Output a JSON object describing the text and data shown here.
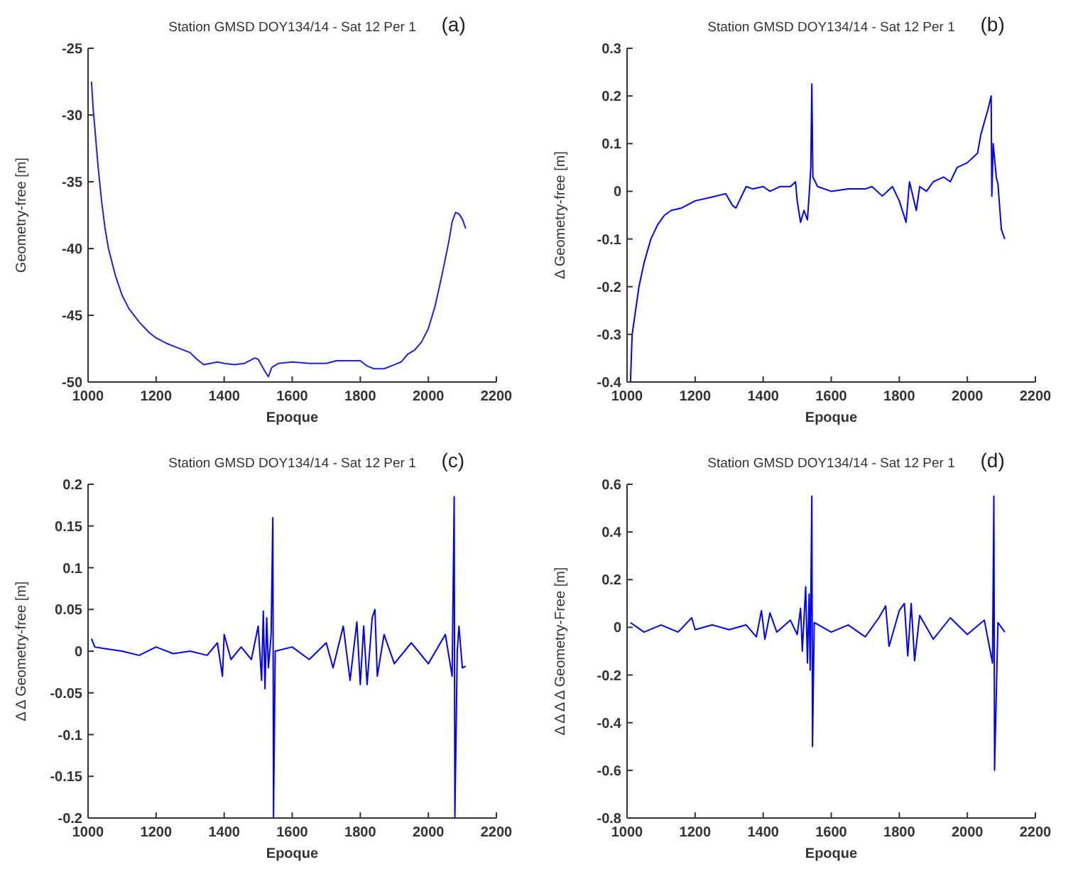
{
  "chart_data": [
    {
      "type": "line",
      "title": "Station GMSD DOY134/14 - Sat  12 Per 1",
      "annotations": [
        "(a)"
      ],
      "xlabel": "Epoque",
      "ylabel": "Geometry-free [m]",
      "xlim": [
        1000,
        2200
      ],
      "xticks": [
        1000,
        1200,
        1400,
        1600,
        1800,
        2000,
        2200
      ],
      "ylim": [
        -50,
        -25
      ],
      "yticks": [
        -50,
        -45,
        -40,
        -35,
        -30,
        -25
      ],
      "grid": false,
      "x": [
        1010,
        1015,
        1020,
        1030,
        1040,
        1050,
        1060,
        1080,
        1100,
        1120,
        1150,
        1180,
        1200,
        1230,
        1260,
        1300,
        1320,
        1340,
        1360,
        1380,
        1400,
        1430,
        1460,
        1490,
        1500,
        1520,
        1530,
        1540,
        1560,
        1600,
        1650,
        1700,
        1730,
        1760,
        1800,
        1820,
        1840,
        1870,
        1900,
        1920,
        1940,
        1960,
        1980,
        2000,
        2020,
        2040,
        2060,
        2070,
        2080,
        2090,
        2100,
        2110
      ],
      "series": [
        {
          "color": "#2020e0",
          "values": [
            -27.5,
            -29.5,
            -31,
            -34,
            -36.5,
            -38.5,
            -40,
            -42,
            -43.5,
            -44.5,
            -45.5,
            -46.3,
            -46.7,
            -47.1,
            -47.4,
            -47.8,
            -48.3,
            -48.7,
            -48.6,
            -48.5,
            -48.6,
            -48.7,
            -48.6,
            -48.2,
            -48.3,
            -49.2,
            -49.6,
            -48.9,
            -48.6,
            -48.5,
            -48.6,
            -48.6,
            -48.4,
            -48.4,
            -48.4,
            -48.8,
            -49,
            -49,
            -48.7,
            -48.5,
            -47.9,
            -47.6,
            -47,
            -46,
            -44.3,
            -42,
            -39.5,
            -38,
            -37.3,
            -37.4,
            -37.8,
            -38.5
          ]
        }
      ]
    },
    {
      "type": "line",
      "title": "Station GMSD DOY134/14 - Sat  12 Per 1",
      "annotations": [
        "(b)"
      ],
      "xlabel": "Epoque",
      "ylabel": "Δ Geometry-free [m]",
      "xlim": [
        1000,
        2200
      ],
      "xticks": [
        1000,
        1200,
        1400,
        1600,
        1800,
        2000,
        2200
      ],
      "ylim": [
        -0.4,
        0.3
      ],
      "yticks": [
        -0.4,
        -0.3,
        -0.2,
        -0.1,
        0,
        0.1,
        0.2,
        0.3
      ],
      "grid": false,
      "x": [
        1010,
        1015,
        1025,
        1035,
        1050,
        1070,
        1090,
        1110,
        1130,
        1160,
        1200,
        1250,
        1290,
        1310,
        1320,
        1340,
        1350,
        1370,
        1400,
        1420,
        1450,
        1480,
        1495,
        1500,
        1510,
        1520,
        1530,
        1535,
        1540,
        1543,
        1546,
        1560,
        1600,
        1650,
        1700,
        1720,
        1750,
        1780,
        1800,
        1820,
        1830,
        1850,
        1860,
        1880,
        1900,
        1930,
        1950,
        1970,
        2000,
        2030,
        2040,
        2060,
        2070,
        2072,
        2076,
        2085,
        2090,
        2100,
        2110
      ],
      "series": [
        {
          "color": "#0000ff",
          "values": [
            -0.4,
            -0.3,
            -0.25,
            -0.2,
            -0.15,
            -0.1,
            -0.07,
            -0.05,
            -0.04,
            -0.035,
            -0.02,
            -0.012,
            -0.005,
            -0.03,
            -0.035,
            -0.005,
            0.01,
            0.005,
            0.01,
            0,
            0.01,
            0.01,
            0.02,
            -0.02,
            -0.065,
            -0.04,
            -0.06,
            -0.01,
            0.05,
            0.225,
            0.03,
            0.01,
            0,
            0.005,
            0.005,
            0.01,
            -0.01,
            0.01,
            -0.02,
            -0.065,
            0.02,
            -0.04,
            0.01,
            0,
            0.02,
            0.03,
            0.02,
            0.05,
            0.06,
            0.08,
            0.12,
            0.17,
            0.2,
            -0.01,
            0.1,
            0.03,
            0.015,
            -0.08,
            -0.1
          ]
        }
      ]
    },
    {
      "type": "line",
      "title": "Station GMSD DOY134/14 - Sat  12 Per 1",
      "annotations": [
        "(c)"
      ],
      "xlabel": "Epoque",
      "ylabel": "Δ Δ Geometry-free [m]",
      "xlim": [
        1000,
        2200
      ],
      "xticks": [
        1000,
        1200,
        1400,
        1600,
        1800,
        2000,
        2200
      ],
      "ylim": [
        -0.2,
        0.2
      ],
      "yticks": [
        -0.2,
        -0.15,
        -0.1,
        -0.05,
        0,
        0.05,
        0.1,
        0.15,
        0.2
      ],
      "grid": false,
      "x": [
        1010,
        1020,
        1050,
        1100,
        1150,
        1200,
        1250,
        1300,
        1350,
        1380,
        1395,
        1400,
        1420,
        1450,
        1480,
        1500,
        1510,
        1515,
        1520,
        1525,
        1530,
        1538,
        1543,
        1545,
        1550,
        1600,
        1650,
        1700,
        1720,
        1750,
        1770,
        1790,
        1800,
        1810,
        1820,
        1835,
        1843,
        1850,
        1870,
        1900,
        1950,
        2000,
        2050,
        2070,
        2076,
        2078,
        2085,
        2090,
        2100,
        2110
      ],
      "series": [
        {
          "color": "#0000ff",
          "values": [
            0.015,
            0.005,
            0.003,
            0,
            -0.005,
            0.005,
            -0.003,
            0,
            -0.005,
            0.01,
            -0.03,
            0.02,
            -0.01,
            0.005,
            -0.01,
            0.03,
            -0.035,
            0.048,
            -0.045,
            0.04,
            -0.02,
            0.02,
            0.16,
            -0.2,
            0,
            0.005,
            -0.01,
            0.01,
            -0.02,
            0.03,
            -0.035,
            0.035,
            -0.04,
            0.03,
            -0.04,
            0.04,
            0.05,
            -0.03,
            0.02,
            -0.015,
            0.01,
            -0.015,
            0.02,
            -0.03,
            0.185,
            -0.2,
            0,
            0.03,
            -0.02,
            -0.018
          ]
        }
      ]
    },
    {
      "type": "line",
      "title": "Station GMSD DOY134/14 - Sat  12 Per 1",
      "annotations": [
        "(d)"
      ],
      "xlabel": "Epoque",
      "ylabel": "Δ Δ Δ Δ Geometry-Free [m]",
      "xlim": [
        1000,
        2200
      ],
      "xticks": [
        1000,
        1200,
        1400,
        1600,
        1800,
        2000,
        2200
      ],
      "ylim": [
        -0.8,
        0.6
      ],
      "yticks": [
        -0.8,
        -0.6,
        -0.4,
        -0.2,
        0,
        0.2,
        0.4,
        0.6
      ],
      "grid": false,
      "x": [
        1010,
        1050,
        1100,
        1150,
        1190,
        1200,
        1250,
        1300,
        1350,
        1380,
        1395,
        1405,
        1420,
        1440,
        1480,
        1500,
        1510,
        1515,
        1525,
        1530,
        1535,
        1538,
        1543,
        1545,
        1550,
        1600,
        1650,
        1700,
        1740,
        1760,
        1770,
        1800,
        1815,
        1825,
        1835,
        1845,
        1860,
        1900,
        1950,
        2000,
        2050,
        2074,
        2076,
        2078,
        2080,
        2090,
        2110
      ],
      "series": [
        {
          "color": "#0000ff",
          "values": [
            0.02,
            -0.02,
            0.01,
            -0.02,
            0.04,
            -0.01,
            0.01,
            -0.01,
            0.01,
            -0.04,
            0.07,
            -0.05,
            0.06,
            -0.02,
            0.03,
            -0.03,
            0.08,
            -0.1,
            0.17,
            -0.15,
            0.14,
            -0.18,
            0.55,
            -0.5,
            0.02,
            -0.02,
            0.01,
            -0.04,
            0.04,
            0.09,
            -0.08,
            0.07,
            0.1,
            -0.12,
            0.1,
            -0.14,
            0.05,
            -0.05,
            0.04,
            -0.03,
            0.03,
            -0.15,
            0.2,
            0.55,
            -0.6,
            0.02,
            -0.02
          ]
        }
      ]
    }
  ]
}
